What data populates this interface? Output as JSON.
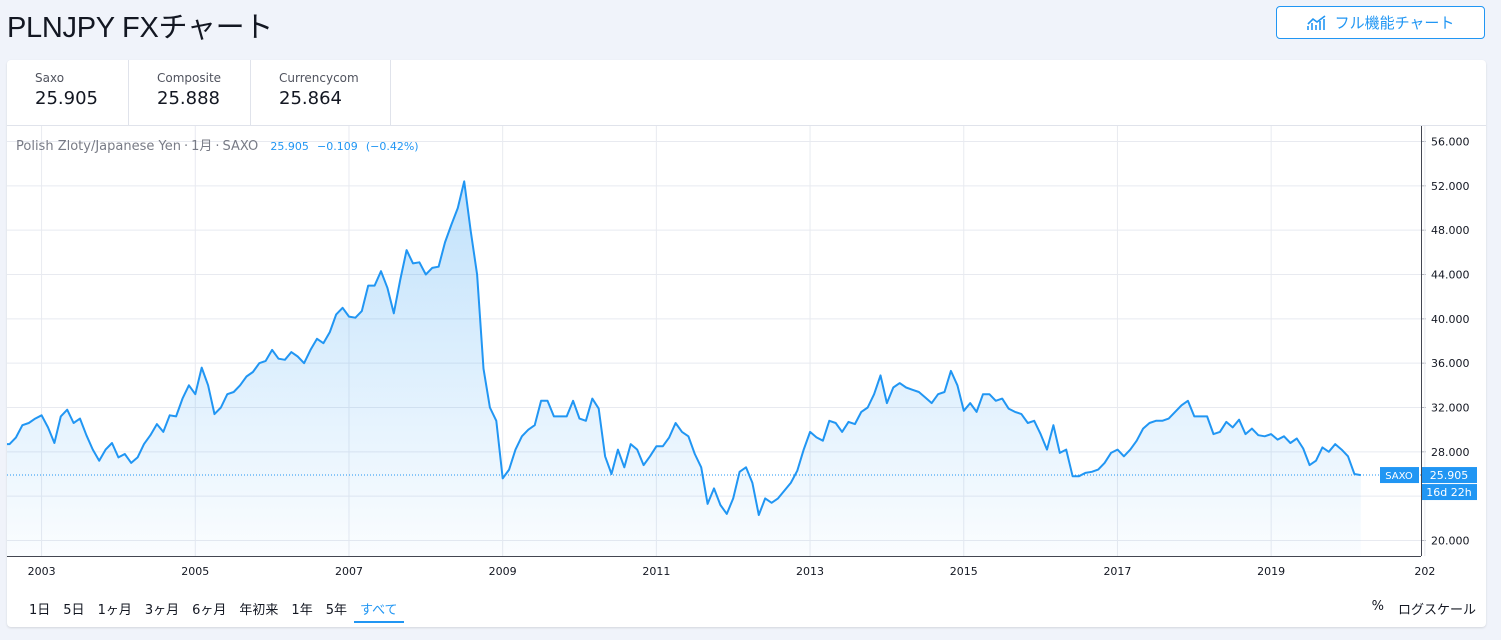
{
  "page": {
    "title": "PLNJPY FXチャート"
  },
  "toolbar": {
    "full_chart_label": "フル機能チャート"
  },
  "tabs": [
    {
      "name": "Saxo",
      "value": "25.905",
      "active": true
    },
    {
      "name": "Composite",
      "value": "25.888",
      "active": false
    },
    {
      "name": "Currencycom",
      "value": "25.864",
      "active": false
    }
  ],
  "legend": {
    "symbol_desc": "Polish Zloty/Japanese Yen",
    "interval": "1月",
    "source": "SAXO",
    "last": "25.905",
    "change": "−0.109",
    "change_pct": "(−0.42%)"
  },
  "price_label": {
    "source": "SAXO",
    "value": "25.905",
    "countdown": "16d 22h"
  },
  "ranges": [
    {
      "label": "1日",
      "active": false
    },
    {
      "label": "5日",
      "active": false
    },
    {
      "label": "1ヶ月",
      "active": false
    },
    {
      "label": "3ヶ月",
      "active": false
    },
    {
      "label": "6ヶ月",
      "active": false
    },
    {
      "label": "年初来",
      "active": false
    },
    {
      "label": "1年",
      "active": false
    },
    {
      "label": "5年",
      "active": false
    },
    {
      "label": "すべて",
      "active": true
    }
  ],
  "options": {
    "percent_label": "%",
    "log_label": "ログスケール"
  },
  "colors": {
    "accent": "#2196f3",
    "line": "#2196f3"
  },
  "icons": {
    "full_chart": "chart-line-icon"
  },
  "chart_data": {
    "type": "area",
    "title": "",
    "xlabel": "",
    "ylabel": "",
    "x_start": "2002-07",
    "interval": "monthly",
    "ylim": [
      18.6,
      57.4
    ],
    "xlim": [
      2002.55,
      2020.95
    ],
    "y_ticks": [
      "20.000",
      "24.000",
      "28.000",
      "32.000",
      "36.000",
      "40.000",
      "44.000",
      "48.000",
      "52.000",
      "56.000"
    ],
    "x_ticks": [
      "2003",
      "2005",
      "2007",
      "2009",
      "2011",
      "2013",
      "2015",
      "2017",
      "2019",
      "202"
    ],
    "last_value": 25.905,
    "grid": true,
    "values": [
      28.7,
      28.7,
      29.3,
      30.4,
      30.6,
      31.0,
      31.3,
      30.2,
      28.8,
      31.2,
      31.8,
      30.6,
      31.0,
      29.5,
      28.2,
      27.2,
      28.2,
      28.8,
      27.5,
      27.8,
      27.0,
      27.5,
      28.7,
      29.5,
      30.5,
      29.8,
      31.3,
      31.2,
      32.8,
      34.0,
      33.2,
      35.6,
      34.0,
      31.4,
      32.0,
      33.2,
      33.4,
      34.0,
      34.8,
      35.2,
      36.0,
      36.2,
      37.2,
      36.4,
      36.3,
      37.0,
      36.6,
      36.0,
      37.2,
      38.2,
      37.8,
      38.8,
      40.4,
      41.0,
      40.2,
      40.1,
      40.7,
      43.0,
      43.0,
      44.3,
      42.8,
      40.5,
      43.5,
      46.2,
      45.0,
      45.1,
      44.0,
      44.6,
      44.7,
      46.9,
      48.5,
      50.0,
      52.4,
      48.0,
      44.0,
      35.5,
      32.0,
      30.8,
      25.6,
      26.4,
      28.2,
      29.4,
      30.0,
      30.4,
      32.6,
      32.6,
      31.2,
      31.2,
      31.2,
      32.6,
      31.0,
      30.8,
      32.8,
      31.9,
      27.6,
      26.0,
      28.2,
      26.6,
      28.7,
      28.2,
      26.8,
      27.6,
      28.5,
      28.5,
      29.3,
      30.6,
      29.8,
      29.4,
      27.8,
      26.6,
      23.3,
      24.7,
      23.2,
      22.4,
      23.8,
      26.2,
      26.6,
      25.2,
      22.3,
      23.8,
      23.4,
      23.8,
      24.5,
      25.2,
      26.3,
      28.2,
      29.8,
      29.3,
      29.0,
      30.8,
      30.6,
      29.8,
      30.7,
      30.5,
      31.6,
      32.0,
      33.2,
      34.9,
      32.4,
      33.8,
      34.2,
      33.8,
      33.6,
      33.4,
      32.9,
      32.4,
      33.2,
      33.4,
      35.3,
      34.0,
      31.7,
      32.4,
      31.6,
      33.2,
      33.2,
      32.6,
      32.8,
      31.9,
      31.6,
      31.4,
      30.6,
      30.8,
      29.6,
      28.2,
      30.4,
      27.9,
      28.2,
      25.8,
      25.8,
      26.1,
      26.2,
      26.4,
      27.0,
      27.9,
      28.2,
      27.6,
      28.2,
      29.0,
      30.1,
      30.6,
      30.8,
      30.8,
      31.0,
      31.6,
      32.2,
      32.6,
      31.2,
      31.2,
      31.2,
      29.6,
      29.8,
      30.7,
      30.2,
      30.9,
      29.6,
      30.1,
      29.5,
      29.4,
      29.6,
      29.1,
      29.4,
      28.8,
      29.2,
      28.3,
      26.8,
      27.2,
      28.4,
      28.0,
      28.7,
      28.2,
      27.6,
      26.0,
      25.9
    ]
  }
}
